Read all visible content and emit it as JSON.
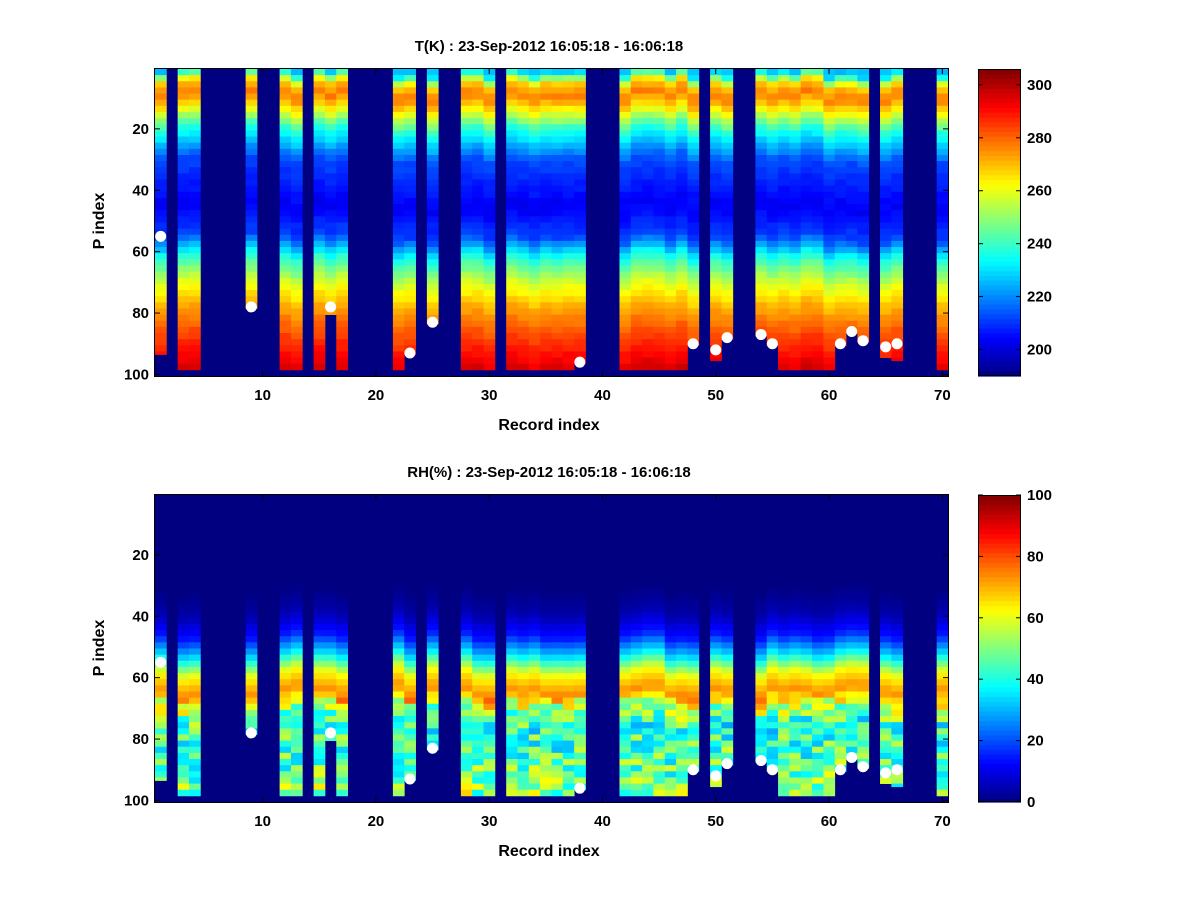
{
  "chart_data": [
    {
      "type": "heatmap",
      "title": "T(K) : 23-Sep-2012 16:05:18 - 16:06:18",
      "xlabel": "Record index",
      "ylabel": "P index",
      "xlim": [
        0.5,
        70.5
      ],
      "ylim": [
        0.5,
        100.5
      ],
      "y_reversed": true,
      "xticks": [
        10,
        20,
        30,
        40,
        50,
        60,
        70
      ],
      "yticks": [
        20,
        40,
        60,
        80,
        100
      ],
      "colorbar": {
        "range": [
          190,
          306
        ],
        "ticks": [
          200,
          220,
          240,
          260,
          280,
          300
        ]
      },
      "fill_value": 190,
      "active_records": [
        1,
        3,
        4,
        9,
        12,
        13,
        15,
        16,
        17,
        22,
        23,
        25,
        28,
        29,
        30,
        32,
        33,
        34,
        35,
        36,
        37,
        38,
        42,
        43,
        44,
        45,
        46,
        47,
        48,
        50,
        51,
        54,
        55,
        56,
        57,
        58,
        59,
        60,
        61,
        62,
        63,
        65,
        66,
        70
      ],
      "column_bottom": {
        "1": 93,
        "3": 98,
        "4": 98,
        "9": 78,
        "12": 98,
        "13": 98,
        "15": 98,
        "16": 80,
        "17": 98,
        "22": 98,
        "23": 93,
        "25": 83,
        "28": 98,
        "29": 98,
        "30": 98,
        "32": 98,
        "33": 98,
        "34": 98,
        "35": 98,
        "36": 98,
        "37": 98,
        "38": 96,
        "42": 98,
        "43": 98,
        "44": 98,
        "45": 98,
        "46": 98,
        "47": 98,
        "48": 90,
        "50": 95,
        "51": 88,
        "54": 87,
        "55": 90,
        "56": 98,
        "57": 98,
        "58": 98,
        "59": 98,
        "60": 98,
        "61": 90,
        "62": 86,
        "63": 89,
        "65": 94,
        "66": 95,
        "70": 98
      },
      "profile": {
        "p": [
          1,
          5,
          9,
          14,
          20,
          30,
          45,
          55,
          62,
          70,
          78,
          86,
          95,
          100
        ],
        "value": [
          226,
          268,
          278,
          262,
          238,
          213,
          203,
          212,
          238,
          258,
          272,
          282,
          292,
          298
        ]
      },
      "surface_points": [
        [
          1,
          55
        ],
        [
          9,
          78
        ],
        [
          16,
          78
        ],
        [
          23,
          93
        ],
        [
          25,
          83
        ],
        [
          38,
          96
        ],
        [
          48,
          90
        ],
        [
          50,
          92
        ],
        [
          51,
          88
        ],
        [
          54,
          87
        ],
        [
          55,
          90
        ],
        [
          61,
          90
        ],
        [
          62,
          86
        ],
        [
          63,
          89
        ],
        [
          65,
          91
        ],
        [
          66,
          90
        ]
      ]
    },
    {
      "type": "heatmap",
      "title": "RH(%) : 23-Sep-2012 16:05:18 - 16:06:18",
      "xlabel": "Record index",
      "ylabel": "P index",
      "xlim": [
        0.5,
        70.5
      ],
      "ylim": [
        0.5,
        100.5
      ],
      "y_reversed": true,
      "xticks": [
        10,
        20,
        30,
        40,
        50,
        60,
        70
      ],
      "yticks": [
        20,
        40,
        60,
        80,
        100
      ],
      "colorbar": {
        "range": [
          0,
          100
        ],
        "ticks": [
          0,
          20,
          40,
          60,
          80,
          100
        ]
      },
      "fill_value": 0,
      "active_records": [
        1,
        3,
        4,
        9,
        12,
        13,
        15,
        16,
        17,
        22,
        23,
        25,
        28,
        29,
        30,
        32,
        33,
        34,
        35,
        36,
        37,
        38,
        42,
        43,
        44,
        45,
        46,
        47,
        48,
        50,
        51,
        54,
        55,
        56,
        57,
        58,
        59,
        60,
        61,
        62,
        63,
        65,
        66,
        70
      ],
      "column_bottom": {
        "1": 93,
        "3": 98,
        "4": 98,
        "9": 78,
        "12": 98,
        "13": 98,
        "15": 98,
        "16": 80,
        "17": 98,
        "22": 98,
        "23": 93,
        "25": 83,
        "28": 98,
        "29": 98,
        "30": 98,
        "32": 98,
        "33": 98,
        "34": 98,
        "35": 98,
        "36": 98,
        "37": 98,
        "38": 96,
        "42": 98,
        "43": 98,
        "44": 98,
        "45": 98,
        "46": 98,
        "47": 98,
        "48": 90,
        "50": 95,
        "51": 88,
        "54": 87,
        "55": 90,
        "56": 98,
        "57": 98,
        "58": 98,
        "59": 98,
        "60": 98,
        "61": 90,
        "62": 86,
        "63": 89,
        "65": 94,
        "66": 95,
        "70": 98
      },
      "profile": {
        "p": [
          1,
          30,
          38,
          46,
          52,
          58,
          64,
          68,
          75,
          85,
          95,
          100
        ],
        "value": [
          0,
          0,
          4,
          15,
          35,
          62,
          74,
          58,
          42,
          45,
          50,
          55
        ]
      },
      "surface_points": [
        [
          1,
          55
        ],
        [
          9,
          78
        ],
        [
          16,
          78
        ],
        [
          23,
          93
        ],
        [
          25,
          83
        ],
        [
          38,
          96
        ],
        [
          48,
          90
        ],
        [
          50,
          92
        ],
        [
          51,
          88
        ],
        [
          54,
          87
        ],
        [
          55,
          90
        ],
        [
          61,
          90
        ],
        [
          62,
          86
        ],
        [
          63,
          89
        ],
        [
          65,
          91
        ],
        [
          66,
          90
        ]
      ]
    }
  ]
}
